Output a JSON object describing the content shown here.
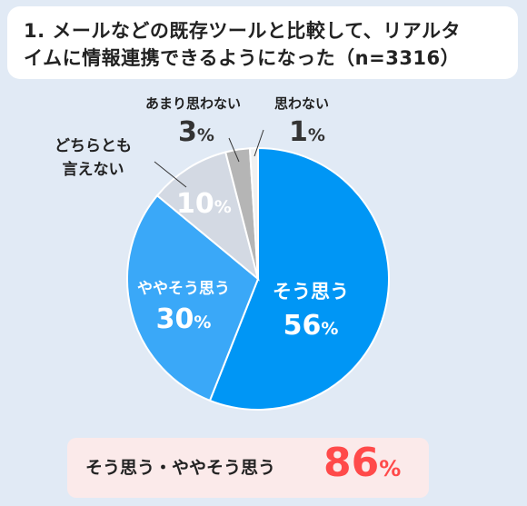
{
  "title": "1. メールなどの既存ツールと比較して、リアルタ\nイムに情報連携できるようになった（n=3316）",
  "chart_data": {
    "type": "pie",
    "title": "1. メールなどの既存ツールと比較して、リアルタイムに情報連携できるようになった（n=3316）",
    "unit": "%",
    "slices": [
      {
        "label": "そう思う",
        "value": 56,
        "color": "#0096f5"
      },
      {
        "label": "ややそう思う",
        "value": 30,
        "color": "#3aa8f8"
      },
      {
        "label": "どちらとも\n言えない",
        "value": 10,
        "color": "#d3d9e3"
      },
      {
        "label": "あまり思わない",
        "value": 3,
        "color": "#b5b5b5"
      },
      {
        "label": "思わない",
        "value": 1,
        "color": "#f1f1f1"
      }
    ]
  },
  "summary": {
    "label": "そう思う・ややそう思う",
    "value": "86",
    "unit": "%"
  }
}
